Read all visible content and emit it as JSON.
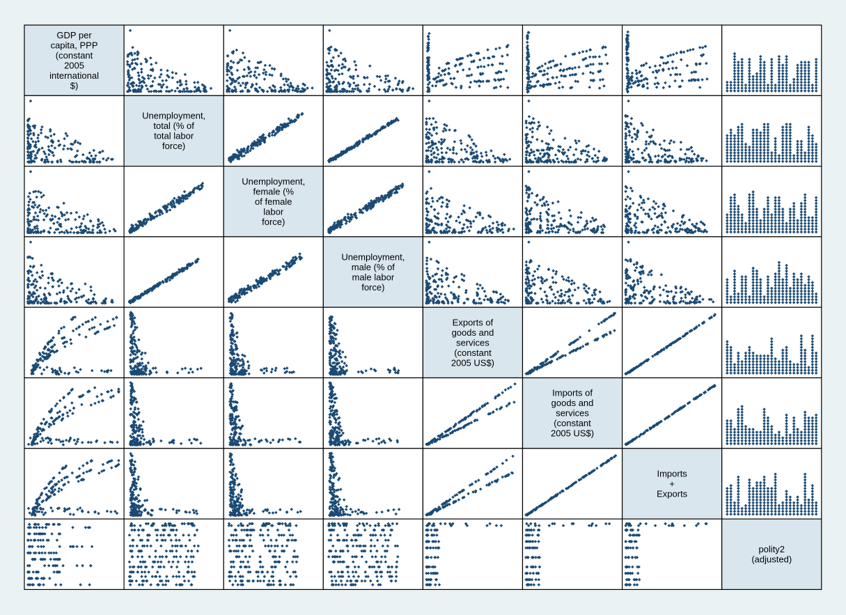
{
  "chart_data": {
    "type": "scatter",
    "title": "",
    "style": {
      "background": "#eaf2f3",
      "panel_background": "#ffffff",
      "diagonal_background": "#d9e6ee",
      "marker_color": "#1a4a74",
      "border_color": "#000000"
    },
    "variables": [
      {
        "name": "GDP per capita, PPP (constant 2005 international $)",
        "label_lines": [
          "GDP per",
          "capita, PPP",
          "(constant",
          "2005",
          "international",
          "$)"
        ]
      },
      {
        "name": "Unemployment, total (% of total labor force)",
        "label_lines": [
          "Unemployment,",
          "total (% of",
          "total labor",
          "force)"
        ]
      },
      {
        "name": "Unemployment, female (% of female labor force)",
        "label_lines": [
          "Unemployment,",
          "female (%",
          "of female",
          "labor",
          "force)"
        ]
      },
      {
        "name": "Unemployment, male (% of male labor force)",
        "label_lines": [
          "Unemployment,",
          "male (% of",
          "male labor",
          "force)"
        ]
      },
      {
        "name": "Exports of goods and services (constant 2005 US$)",
        "label_lines": [
          "Exports of",
          "goods and",
          "services",
          "(constant",
          "2005 US$)"
        ]
      },
      {
        "name": "Imports of goods and services (constant 2005 US$)",
        "label_lines": [
          "Imports of",
          "goods and",
          "services",
          "(constant",
          "2005 US$)"
        ]
      },
      {
        "name": "Imports + Exports",
        "label_lines": [
          "Imports",
          "+",
          "Exports"
        ]
      },
      {
        "name": "polity2 (adjusted)",
        "label_lines": [
          "polity2",
          "(adjusted)"
        ]
      }
    ],
    "panel_shapes": [
      [
        "label",
        "lshape",
        "lshape",
        "lshape",
        "fanline",
        "fanline",
        "fanline",
        "bars"
      ],
      [
        "lshape",
        "label",
        "corrpos",
        "corrtight",
        "lshape",
        "lshape",
        "lshape",
        "bars"
      ],
      [
        "lshape",
        "corrpos",
        "label",
        "corrpos",
        "lshape",
        "lshape",
        "lshape",
        "bars"
      ],
      [
        "lshape",
        "corrtight",
        "corrpos",
        "label",
        "lshape",
        "lshape",
        "lshape",
        "bars"
      ],
      [
        "fanup",
        "spike",
        "spike",
        "spike",
        "label",
        "linear2",
        "linear1",
        "bars"
      ],
      [
        "fanup",
        "spike",
        "spike",
        "spike",
        "linear2",
        "label",
        "linear1",
        "bars"
      ],
      [
        "fanup",
        "spike",
        "spike",
        "spike",
        "linear2",
        "linear1",
        "label",
        "bars"
      ],
      [
        "rows",
        "rowsdense",
        "rowsdense",
        "rowsdense",
        "rowsleft",
        "rowsleft",
        "rowsleft",
        "label"
      ]
    ]
  }
}
